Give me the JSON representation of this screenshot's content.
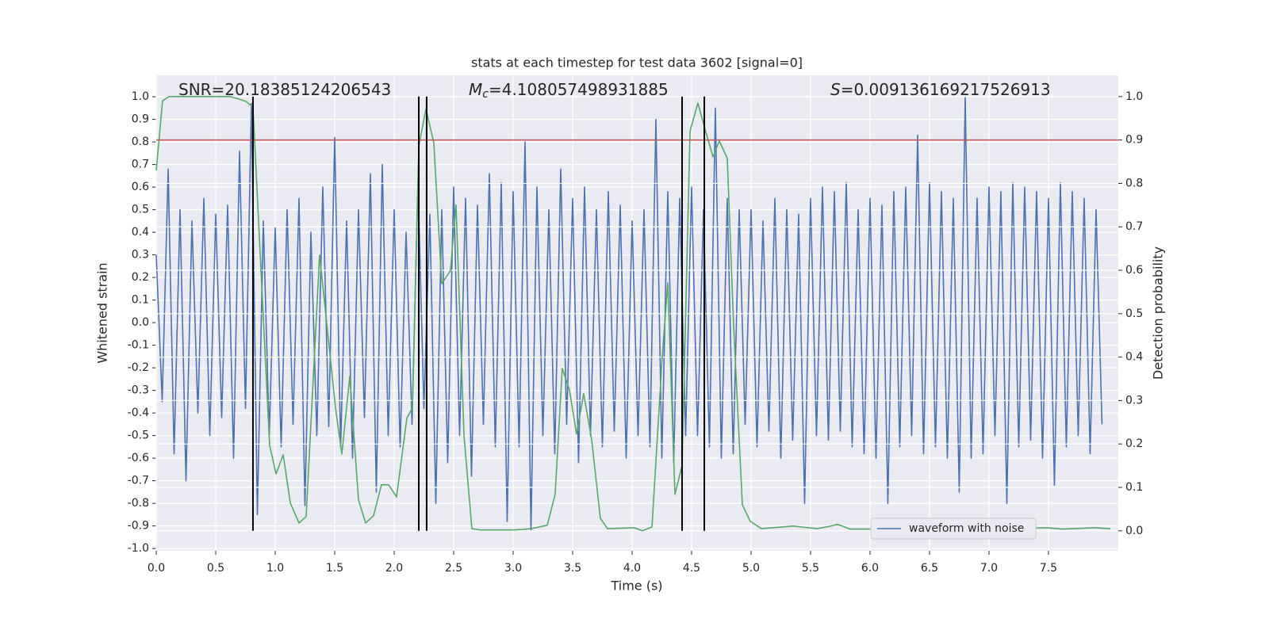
{
  "chart_data": {
    "type": "line",
    "title": "stats at each timestep for test data 3602 [signal=0]",
    "xlabel": "Time (s)",
    "ylabel": "Whitened strain",
    "y2label": "Detection probability",
    "xlim": [
      0,
      8.087
    ],
    "ylim": [
      -1.01,
      1.095
    ],
    "y2lim": [
      -0.046,
      1.049
    ],
    "xticks": [
      {
        "value": 0,
        "label": "0.0"
      },
      0.5,
      {
        "value": 1,
        "label": "1.0"
      },
      1.5,
      {
        "value": 2,
        "label": "2.0"
      },
      2.5,
      {
        "value": 3,
        "label": "3.0"
      },
      3.5,
      {
        "value": 4,
        "label": "4.0"
      },
      4.5,
      {
        "value": 5,
        "label": "5.0"
      },
      5.5,
      {
        "value": 6,
        "label": "6.0"
      },
      6.5,
      {
        "value": 7,
        "label": "7.0"
      },
      7.5
    ],
    "yticks": [
      {
        "value": -1,
        "label": "-1.0"
      },
      -0.9,
      -0.8,
      -0.7,
      -0.6,
      -0.5,
      -0.4,
      -0.3,
      -0.2,
      -0.1,
      {
        "value": 0,
        "label": "0.0"
      },
      0.1,
      0.2,
      0.3,
      0.4,
      0.5,
      0.6,
      0.7,
      0.8,
      0.9,
      {
        "value": 1,
        "label": "1.0"
      }
    ],
    "y2ticks": [
      {
        "value": 0,
        "label": "0.0"
      },
      0.1,
      0.2,
      0.3,
      0.4,
      0.5,
      0.6,
      0.7,
      0.8,
      0.9,
      {
        "value": 1,
        "label": "1.0"
      }
    ],
    "grid": true,
    "legend": "lower right",
    "series": [
      {
        "name": "waveform with noise",
        "color": "#4c72b0",
        "x": [
          0,
          0.05,
          0.1,
          0.15,
          0.2,
          0.25,
          0.3,
          0.35,
          0.4,
          0.45,
          0.5,
          0.55,
          0.6,
          0.65,
          0.7,
          0.75,
          0.8,
          0.85,
          0.9,
          0.95,
          1,
          1.05,
          1.1,
          1.15,
          1.2,
          1.25,
          1.3,
          1.35,
          1.4,
          1.45,
          1.5,
          1.55,
          1.6,
          1.65,
          1.7,
          1.75,
          1.8,
          1.85,
          1.9,
          1.95,
          2,
          2.05,
          2.1,
          2.15,
          2.2,
          2.25,
          2.3,
          2.35,
          2.4,
          2.45,
          2.5,
          2.55,
          2.6,
          2.65,
          2.7,
          2.75,
          2.8,
          2.85,
          2.9,
          2.95,
          3,
          3.05,
          3.1,
          3.15,
          3.2,
          3.25,
          3.3,
          3.35,
          3.4,
          3.45,
          3.5,
          3.55,
          3.6,
          3.65,
          3.7,
          3.75,
          3.8,
          3.85,
          3.9,
          3.95,
          4,
          4.05,
          4.1,
          4.15,
          4.2,
          4.25,
          4.3,
          4.35,
          4.4,
          4.45,
          4.5,
          4.55,
          4.6,
          4.65,
          4.7,
          4.75,
          4.8,
          4.85,
          4.9,
          4.95,
          5,
          5.05,
          5.1,
          5.15,
          5.2,
          5.25,
          5.3,
          5.35,
          5.4,
          5.45,
          5.5,
          5.55,
          5.6,
          5.65,
          5.7,
          5.75,
          5.8,
          5.85,
          5.9,
          5.95,
          6,
          6.05,
          6.1,
          6.15,
          6.2,
          6.25,
          6.3,
          6.35,
          6.4,
          6.45,
          6.5,
          6.55,
          6.6,
          6.65,
          6.7,
          6.75,
          6.8,
          6.85,
          6.9,
          6.95,
          7,
          7.05,
          7.1,
          7.15,
          7.2,
          7.25,
          7.3,
          7.35,
          7.4,
          7.45,
          7.5,
          7.55,
          7.6,
          7.65,
          7.7,
          7.75,
          7.8,
          7.85,
          7.9,
          7.95
        ],
        "values": [
          0.3,
          -0.35,
          0.68,
          -0.58,
          0.5,
          -0.7,
          0.45,
          -0.4,
          0.55,
          -0.5,
          0.48,
          -0.42,
          0.52,
          -0.6,
          0.76,
          -0.38,
          0.97,
          -0.85,
          0.45,
          -0.5,
          0.42,
          -0.55,
          0.5,
          -0.45,
          0.55,
          -0.81,
          0.4,
          -0.5,
          0.6,
          -0.46,
          0.82,
          -0.55,
          0.45,
          -0.6,
          0.5,
          -0.42,
          0.66,
          -0.75,
          0.7,
          -0.5,
          0.5,
          -0.55,
          0.4,
          -0.45,
          0.62,
          -0.38,
          0.48,
          -0.8,
          0.5,
          -0.62,
          0.6,
          -0.5,
          0.55,
          -0.68,
          0.52,
          -0.45,
          0.66,
          -0.55,
          0.62,
          -0.88,
          0.58,
          -0.55,
          0.8,
          -0.92,
          0.6,
          -0.5,
          0.5,
          -0.58,
          0.68,
          -0.45,
          0.55,
          -0.62,
          0.6,
          -0.5,
          0.5,
          -0.55,
          0.58,
          -0.48,
          0.52,
          -0.6,
          0.45,
          -0.5,
          0.5,
          -0.55,
          0.9,
          -0.6,
          0.58,
          -0.62,
          0.55,
          -0.5,
          0.6,
          -0.5,
          0.5,
          -0.55,
          0.95,
          -0.6,
          0.55,
          -0.58,
          0.5,
          -0.45,
          0.5,
          -0.55,
          0.45,
          -0.48,
          0.55,
          -0.6,
          0.5,
          -0.52,
          0.48,
          -0.8,
          0.55,
          -0.5,
          0.6,
          -0.52,
          0.58,
          -0.48,
          0.62,
          -0.55,
          0.5,
          -0.58,
          0.55,
          -0.6,
          0.52,
          -0.8,
          0.58,
          -0.55,
          0.6,
          -0.5,
          0.83,
          -0.58,
          0.62,
          -0.55,
          0.58,
          -0.6,
          0.55,
          -0.75,
          1.0,
          -0.6,
          0.55,
          -0.58,
          0.6,
          -0.5,
          0.58,
          -0.8,
          0.62,
          -0.55,
          0.6,
          -0.52,
          0.58,
          -0.6,
          0.55,
          -0.72,
          0.62,
          -0.55,
          0.58,
          -0.5,
          0.55,
          -0.58,
          0.5,
          -0.45
        ]
      },
      {
        "color": "#55a868",
        "axis": "y2",
        "x": [
          0,
          0.053,
          0.107,
          0.62,
          0.687,
          0.753,
          0.813,
          0.92,
          0.953,
          1.007,
          1.067,
          1.127,
          1.2,
          1.26,
          1.373,
          1.507,
          1.56,
          1.627,
          1.7,
          1.76,
          1.827,
          1.893,
          1.953,
          2.02,
          2.107,
          2.153,
          2.207,
          2.267,
          2.333,
          2.4,
          2.473,
          2.52,
          2.587,
          2.653,
          2.72,
          3.02,
          3.153,
          3.287,
          3.353,
          3.413,
          3.473,
          3.533,
          3.593,
          3.66,
          3.733,
          3.793,
          4.02,
          4.087,
          4.167,
          4.253,
          4.3,
          4.36,
          4.42,
          4.487,
          4.553,
          4.613,
          4.68,
          4.733,
          4.8,
          4.853,
          4.927,
          4.993,
          5.087,
          5.353,
          5.553,
          5.673,
          5.727,
          5.833,
          6.087,
          6.293,
          6.393,
          6.453,
          6.52,
          6.593,
          6.953,
          7.093,
          7.22,
          7.487,
          7.62,
          7.887,
          8.02
        ],
        "values": [
          0.83,
          0.99,
          1.0,
          1.0,
          0.995,
          0.989,
          0.976,
          0.38,
          0.197,
          0.131,
          0.175,
          0.064,
          0.018,
          0.033,
          0.635,
          0.283,
          0.177,
          0.356,
          0.071,
          0.018,
          0.035,
          0.106,
          0.106,
          0.078,
          0.26,
          0.283,
          0.887,
          0.971,
          0.894,
          0.569,
          0.599,
          0.75,
          0.219,
          0.005,
          0.002,
          0.002,
          0.005,
          0.013,
          0.084,
          0.374,
          0.325,
          0.223,
          0.316,
          0.21,
          0.029,
          0.005,
          0.007,
          0.0,
          0.009,
          0.4,
          0.571,
          0.084,
          0.15,
          0.92,
          0.985,
          0.925,
          0.861,
          0.898,
          0.858,
          0.474,
          0.06,
          0.022,
          0.005,
          0.011,
          0.005,
          0.011,
          0.015,
          0.004,
          0.004,
          0.015,
          0.018,
          0.027,
          0.018,
          0.007,
          0.005,
          0.011,
          0.005,
          0.007,
          0.004,
          0.007,
          0.005
        ]
      }
    ],
    "threshold": {
      "value": 0.9,
      "axis": "y2",
      "color": "#c44e52"
    },
    "vlines": {
      "x": [
        0.813,
        2.207,
        2.273,
        4.42,
        4.607
      ],
      "ymin": 0,
      "ymax": 1,
      "axis": "y2",
      "color": "#000000"
    },
    "annotations": [
      {
        "text": "SNR=20.18385124206543"
      },
      {
        "symbol": "M",
        "subscript": "c",
        "text": "=4.108057498931885"
      },
      {
        "symbol": "S",
        "text": "=0.009136169217526913"
      }
    ]
  }
}
